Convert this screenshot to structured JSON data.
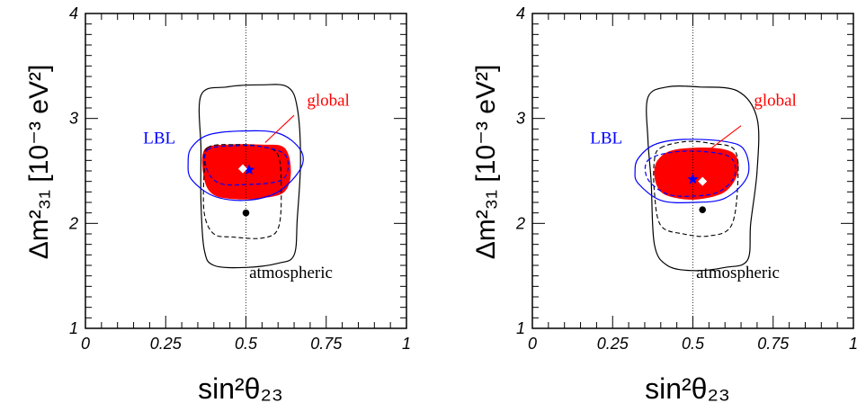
{
  "chart_data": [
    {
      "type": "contour",
      "panel": "left",
      "xlabel": "sin²θ₂₃",
      "ylabel": "Δm²₃₁ [10⁻³ eV²]",
      "xlim": [
        0,
        1
      ],
      "ylim": [
        1,
        4
      ],
      "xticks": [
        "0",
        "0.25",
        "0.5",
        "0.75",
        "1"
      ],
      "yticks": [
        "1",
        "2",
        "3",
        "4"
      ],
      "reference_line_x": 0.5,
      "labels": {
        "lbl": "LBL",
        "global": "global",
        "atm": "atmospheric"
      },
      "best_fit": {
        "global_star": [
          0.51,
          2.51
        ],
        "lbl_diamond": [
          0.49,
          2.52
        ],
        "atm_dot": [
          0.5,
          2.1
        ]
      },
      "colors": {
        "global": "#ff0000",
        "lbl": "#0000ff",
        "atm": "#000000",
        "white_marker": "#ffffff"
      },
      "contours": {
        "atm_outer": [
          [
            0.36,
            3.22
          ],
          [
            0.44,
            3.3
          ],
          [
            0.55,
            3.32
          ],
          [
            0.63,
            3.3
          ],
          [
            0.66,
            3.1
          ],
          [
            0.67,
            2.6
          ],
          [
            0.66,
            2.05
          ],
          [
            0.65,
            1.7
          ],
          [
            0.6,
            1.62
          ],
          [
            0.5,
            1.58
          ],
          [
            0.4,
            1.6
          ],
          [
            0.37,
            1.75
          ],
          [
            0.36,
            2.2
          ],
          [
            0.36,
            2.7
          ]
        ],
        "atm_inner": [
          [
            0.38,
            2.72
          ],
          [
            0.47,
            2.75
          ],
          [
            0.55,
            2.73
          ],
          [
            0.6,
            2.65
          ],
          [
            0.61,
            2.3
          ],
          [
            0.6,
            1.95
          ],
          [
            0.55,
            1.86
          ],
          [
            0.46,
            1.87
          ],
          [
            0.4,
            1.9
          ],
          [
            0.37,
            2.1
          ],
          [
            0.37,
            2.5
          ]
        ],
        "lbl_outer": [
          [
            0.33,
            2.72
          ],
          [
            0.38,
            2.84
          ],
          [
            0.48,
            2.88
          ],
          [
            0.6,
            2.86
          ],
          [
            0.67,
            2.7
          ],
          [
            0.67,
            2.52
          ],
          [
            0.6,
            2.3
          ],
          [
            0.5,
            2.22
          ],
          [
            0.4,
            2.26
          ],
          [
            0.33,
            2.42
          ],
          [
            0.32,
            2.58
          ]
        ],
        "lbl_inner": [
          [
            0.38,
            2.7
          ],
          [
            0.47,
            2.74
          ],
          [
            0.55,
            2.73
          ],
          [
            0.62,
            2.66
          ],
          [
            0.63,
            2.5
          ],
          [
            0.6,
            2.4
          ],
          [
            0.5,
            2.37
          ],
          [
            0.42,
            2.38
          ],
          [
            0.38,
            2.5
          ]
        ],
        "global_fill": [
          [
            0.37,
            2.7
          ],
          [
            0.44,
            2.75
          ],
          [
            0.55,
            2.75
          ],
          [
            0.62,
            2.72
          ],
          [
            0.64,
            2.5
          ],
          [
            0.62,
            2.3
          ],
          [
            0.55,
            2.24
          ],
          [
            0.47,
            2.23
          ],
          [
            0.4,
            2.27
          ],
          [
            0.37,
            2.42
          ]
        ]
      },
      "global_arrow": {
        "from": [
          0.65,
          3.03
        ],
        "to": [
          0.56,
          2.77
        ]
      }
    },
    {
      "type": "contour",
      "panel": "right",
      "xlabel": "sin²θ₂₃",
      "ylabel": "Δm²₃₁ [10⁻³ eV²]",
      "xlim": [
        0,
        1
      ],
      "ylim": [
        1,
        4
      ],
      "xticks": [
        "0",
        "0.25",
        "0.5",
        "0.75",
        "1"
      ],
      "yticks": [
        "1",
        "2",
        "3",
        "4"
      ],
      "reference_line_x": 0.5,
      "labels": {
        "lbl": "LBL",
        "global": "global",
        "atm": "atmospheric"
      },
      "best_fit": {
        "global_diamond": [
          0.53,
          2.4
        ],
        "lbl_star": [
          0.5,
          2.42
        ],
        "atm_dot": [
          0.53,
          2.13
        ]
      },
      "colors": {
        "global": "#ff0000",
        "lbl": "#0000ff",
        "atm": "#000000",
        "white_marker": "#ffffff"
      },
      "contours": {
        "atm_outer": [
          [
            0.36,
            3.2
          ],
          [
            0.42,
            3.3
          ],
          [
            0.52,
            3.3
          ],
          [
            0.64,
            3.26
          ],
          [
            0.7,
            3.0
          ],
          [
            0.7,
            2.5
          ],
          [
            0.68,
            2.0
          ],
          [
            0.67,
            1.65
          ],
          [
            0.6,
            1.58
          ],
          [
            0.5,
            1.55
          ],
          [
            0.42,
            1.6
          ],
          [
            0.38,
            1.8
          ],
          [
            0.37,
            2.4
          ],
          [
            0.36,
            2.8
          ]
        ],
        "atm_inner": [
          [
            0.4,
            2.72
          ],
          [
            0.48,
            2.78
          ],
          [
            0.56,
            2.76
          ],
          [
            0.63,
            2.7
          ],
          [
            0.64,
            2.4
          ],
          [
            0.62,
            1.98
          ],
          [
            0.55,
            1.88
          ],
          [
            0.47,
            1.9
          ],
          [
            0.4,
            1.98
          ],
          [
            0.38,
            2.3
          ],
          [
            0.38,
            2.6
          ]
        ],
        "lbl_outer": [
          [
            0.33,
            2.62
          ],
          [
            0.38,
            2.75
          ],
          [
            0.47,
            2.8
          ],
          [
            0.6,
            2.78
          ],
          [
            0.66,
            2.7
          ],
          [
            0.67,
            2.45
          ],
          [
            0.6,
            2.24
          ],
          [
            0.5,
            2.2
          ],
          [
            0.4,
            2.22
          ],
          [
            0.33,
            2.38
          ],
          [
            0.32,
            2.5
          ]
        ],
        "lbl_inner": [
          [
            0.36,
            2.6
          ],
          [
            0.44,
            2.68
          ],
          [
            0.55,
            2.68
          ],
          [
            0.62,
            2.62
          ],
          [
            0.63,
            2.45
          ],
          [
            0.58,
            2.3
          ],
          [
            0.5,
            2.26
          ],
          [
            0.42,
            2.28
          ],
          [
            0.36,
            2.42
          ]
        ],
        "global_fill": [
          [
            0.39,
            2.6
          ],
          [
            0.44,
            2.7
          ],
          [
            0.56,
            2.72
          ],
          [
            0.63,
            2.66
          ],
          [
            0.64,
            2.48
          ],
          [
            0.6,
            2.3
          ],
          [
            0.52,
            2.23
          ],
          [
            0.45,
            2.24
          ],
          [
            0.4,
            2.3
          ],
          [
            0.38,
            2.45
          ]
        ]
      },
      "global_arrow": {
        "from": [
          0.65,
          2.93
        ],
        "to": [
          0.55,
          2.7
        ]
      }
    }
  ]
}
